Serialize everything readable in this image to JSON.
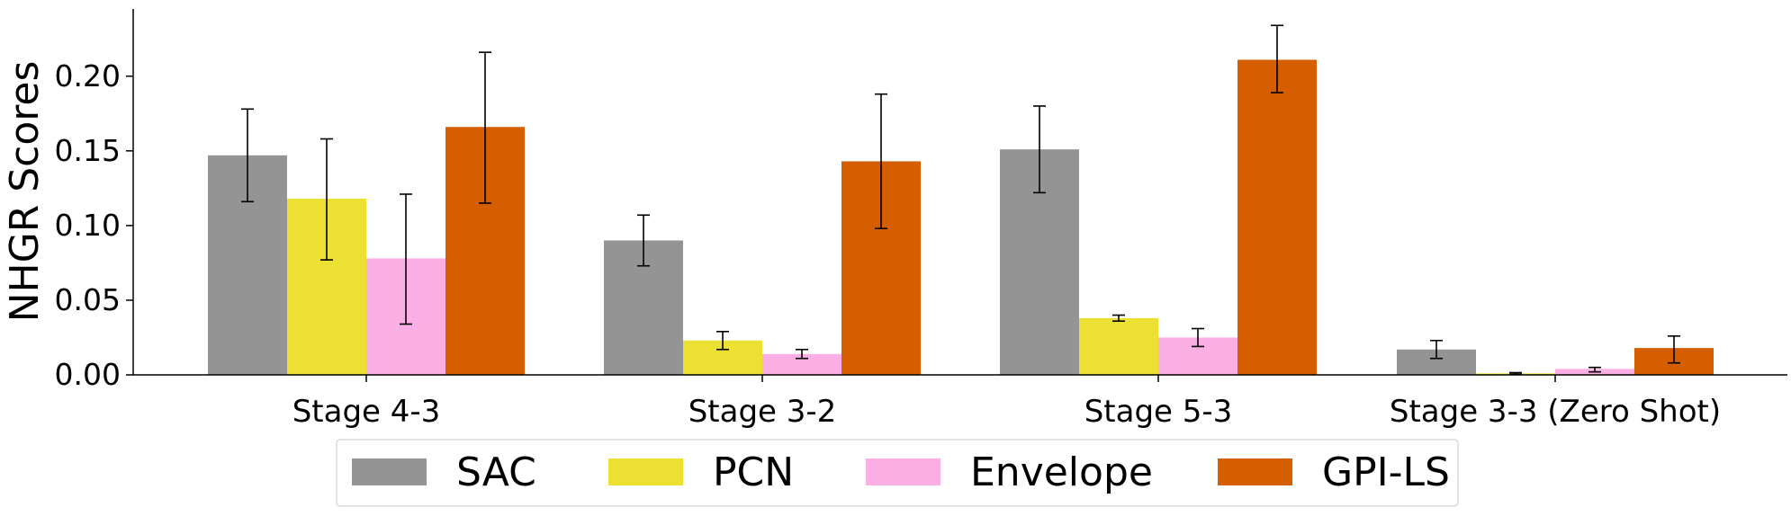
{
  "chart_data": {
    "type": "bar",
    "title": "",
    "xlabel": "",
    "ylabel": "NHGR Scores",
    "ylim": [
      0,
      0.245
    ],
    "yticks": [
      0.0,
      0.05,
      0.1,
      0.15,
      0.2
    ],
    "ytick_labels": [
      "0.00",
      "0.05",
      "0.10",
      "0.15",
      "0.20"
    ],
    "categories": [
      "Stage 4-3",
      "Stage 3-2",
      "Stage 5-3",
      "Stage 3-3 (Zero Shot)"
    ],
    "legend_position": "bottom-center",
    "grid": false,
    "series": [
      {
        "name": "SAC",
        "color": "#949494",
        "values": [
          0.147,
          0.09,
          0.151,
          0.017
        ],
        "err_low": [
          0.116,
          0.073,
          0.122,
          0.011
        ],
        "err_high": [
          0.178,
          0.107,
          0.18,
          0.023
        ]
      },
      {
        "name": "PCN",
        "color": "#ece133",
        "values": [
          0.118,
          0.023,
          0.038,
          0.001
        ],
        "err_low": [
          0.077,
          0.017,
          0.036,
          0.0005
        ],
        "err_high": [
          0.158,
          0.029,
          0.04,
          0.0015
        ]
      },
      {
        "name": "Envelope",
        "color": "#fbafe4",
        "values": [
          0.078,
          0.014,
          0.025,
          0.004
        ],
        "err_low": [
          0.034,
          0.011,
          0.019,
          0.002
        ],
        "err_high": [
          0.121,
          0.017,
          0.031,
          0.005
        ]
      },
      {
        "name": "GPI-LS",
        "color": "#d55e00",
        "values": [
          0.166,
          0.143,
          0.211,
          0.018
        ],
        "err_low": [
          0.115,
          0.098,
          0.189,
          0.008
        ],
        "err_high": [
          0.216,
          0.188,
          0.234,
          0.026
        ]
      }
    ]
  }
}
